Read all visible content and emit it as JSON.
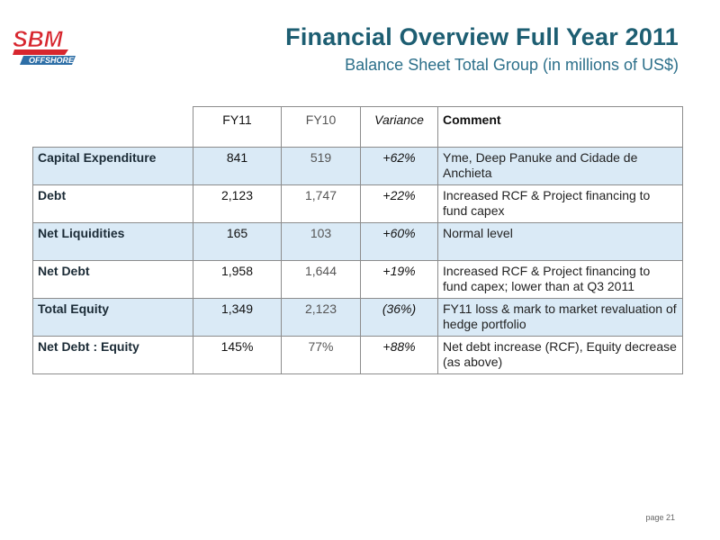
{
  "logo": {
    "brand": "SBM",
    "sub": "OFFSHORE",
    "colors": {
      "brand": "#d7262e",
      "band": "#2d6ea6"
    }
  },
  "header": {
    "title": "Financial Overview Full Year 2011",
    "subtitle": "Balance Sheet Total Group (in millions of US$)"
  },
  "table": {
    "columns": [
      "FY11",
      "FY10",
      "Variance",
      "Comment"
    ],
    "rows": [
      {
        "label": "Capital Expenditure",
        "fy11": "841",
        "fy10": "519",
        "variance": "+62%",
        "comment": "Yme, Deep Panuke and Cidade de Anchieta"
      },
      {
        "label": "Debt",
        "fy11": "2,123",
        "fy10": "1,747",
        "variance": "+22%",
        "comment": "Increased RCF & Project financing to fund capex"
      },
      {
        "label": "Net Liquidities",
        "fy11": "165",
        "fy10": "103",
        "variance": "+60%",
        "comment": "Normal level"
      },
      {
        "label": "Net Debt",
        "fy11": "1,958",
        "fy10": "1,644",
        "variance": "+19%",
        "comment": "Increased RCF & Project financing to fund capex; lower than at Q3 2011"
      },
      {
        "label": "Total Equity",
        "fy11": "1,349",
        "fy10": "2,123",
        "variance": "(36%)",
        "comment": "FY11 loss & mark to market revaluation of hedge portfolio"
      },
      {
        "label": "Net Debt : Equity",
        "fy11": "145%",
        "fy10": "77%",
        "variance": "+88%",
        "comment": "Net debt increase (RCF), Equity decrease (as above)"
      }
    ],
    "colors": {
      "alt_row": "#daeaf6",
      "border": "#8c8c8c"
    }
  },
  "footer": {
    "page": "page 21"
  }
}
